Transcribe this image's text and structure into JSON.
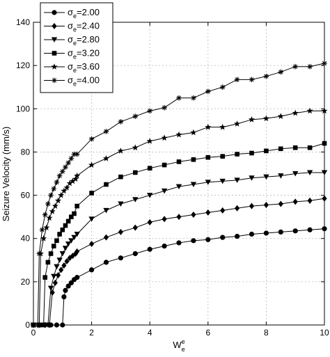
{
  "chart_data": {
    "type": "line",
    "xlabel": "W",
    "xlabel_sup": "e",
    "xlabel_sub": "e",
    "ylabel": "Seizure Velocity (mm/s)",
    "xlim": [
      0,
      10
    ],
    "ylim": [
      0,
      140
    ],
    "xticks": [
      "0",
      "2",
      "4",
      "6",
      "8",
      "10"
    ],
    "yticks": [
      "0",
      "20",
      "40",
      "60",
      "80",
      "100",
      "120",
      "140"
    ],
    "grid": true,
    "legend_position": "top-left",
    "series": [
      {
        "name": "σ",
        "sub": "e",
        "value": "=2.00",
        "marker": "circle",
        "x": [
          0,
          0.2,
          0.4,
          0.6,
          0.8,
          1.0,
          1.05,
          1.1,
          1.2,
          1.3,
          1.4,
          1.5,
          2.0,
          2.5,
          3.0,
          3.5,
          4.0,
          4.5,
          5.0,
          5.5,
          6.0,
          6.5,
          7.0,
          7.5,
          8.0,
          8.5,
          9.0,
          9.5,
          10.0
        ],
        "y": [
          0,
          0,
          0,
          0,
          0,
          0,
          13,
          16,
          18,
          19.5,
          21,
          22,
          25.5,
          29,
          31,
          33,
          35,
          36.5,
          38,
          39,
          39.5,
          40.5,
          41,
          42,
          42.5,
          43,
          43.5,
          44,
          44.5
        ]
      },
      {
        "name": "σ",
        "sub": "e",
        "value": "=2.40",
        "marker": "diamond",
        "x": [
          0,
          0.2,
          0.4,
          0.55,
          0.65,
          0.75,
          0.85,
          0.95,
          1.05,
          1.15,
          1.25,
          1.35,
          1.45,
          1.5,
          2.0,
          2.5,
          3.0,
          3.5,
          4.0,
          4.5,
          5.0,
          5.5,
          6.0,
          6.5,
          7.0,
          7.5,
          8.0,
          8.5,
          9.0,
          9.5,
          10.0
        ],
        "y": [
          0,
          0,
          0,
          0,
          15,
          19.5,
          23,
          25.5,
          27.5,
          29.5,
          31,
          32,
          33,
          34,
          37.5,
          40.5,
          43,
          45,
          47.5,
          49,
          50,
          51,
          52,
          53,
          54,
          55,
          55.5,
          56,
          57,
          57.5,
          58.5
        ]
      },
      {
        "name": "σ",
        "sub": "e",
        "value": "=2.80",
        "marker": "triangle-down",
        "x": [
          0,
          0.2,
          0.4,
          0.5,
          0.6,
          0.7,
          0.8,
          0.9,
          1.0,
          1.1,
          1.2,
          1.3,
          1.4,
          1.5,
          2.0,
          2.5,
          3.0,
          3.5,
          4.0,
          4.5,
          5.0,
          5.5,
          6.0,
          6.5,
          7.0,
          7.5,
          8.0,
          8.5,
          9.0,
          9.5,
          10.0
        ],
        "y": [
          0,
          0,
          0,
          0,
          17,
          22.5,
          27,
          30,
          33,
          35.5,
          37.5,
          39,
          40.5,
          42,
          49,
          53,
          56,
          58,
          60,
          62,
          64,
          65,
          66,
          66.5,
          67,
          68,
          68.5,
          69,
          70,
          70.5,
          70.5
        ]
      },
      {
        "name": "σ",
        "sub": "e",
        "value": "=3.20",
        "marker": "square",
        "x": [
          0,
          0.2,
          0.35,
          0.4,
          0.5,
          0.6,
          0.7,
          0.8,
          0.9,
          1.0,
          1.1,
          1.2,
          1.3,
          1.4,
          1.5,
          2.0,
          2.5,
          3.0,
          3.5,
          4.0,
          4.5,
          5.0,
          5.5,
          6.0,
          6.5,
          7.0,
          7.5,
          8.0,
          8.5,
          9.0,
          9.5,
          10.0
        ],
        "y": [
          0,
          0,
          0,
          22,
          29,
          33,
          36.5,
          39,
          42,
          44,
          46,
          48,
          50,
          51.5,
          55,
          61,
          65,
          68.5,
          70.5,
          72.5,
          74,
          75.5,
          76.5,
          77.5,
          78,
          79,
          79.5,
          80.5,
          81.5,
          82,
          82,
          84
        ]
      },
      {
        "name": "σ",
        "sub": "e",
        "value": "=3.60",
        "marker": "star",
        "x": [
          0,
          0.2,
          0.25,
          0.35,
          0.45,
          0.55,
          0.65,
          0.75,
          0.85,
          0.95,
          1.05,
          1.15,
          1.25,
          1.35,
          1.45,
          1.5,
          2.0,
          2.5,
          3.0,
          3.5,
          4.0,
          4.5,
          5.0,
          5.5,
          6.0,
          6.5,
          7.0,
          7.5,
          8.0,
          8.5,
          9.0,
          9.5,
          10.0
        ],
        "y": [
          0,
          0,
          33,
          40,
          45,
          49.5,
          52.5,
          55,
          57.5,
          60,
          62,
          63.5,
          65.5,
          66.5,
          67.5,
          69,
          74,
          77,
          80.5,
          82,
          85,
          86.5,
          88,
          89,
          91.5,
          91.5,
          93,
          95,
          95.5,
          96.5,
          98,
          99,
          99
        ]
      },
      {
        "name": "σ",
        "sub": "e",
        "value": "=4.00",
        "marker": "asterisk",
        "x": [
          0,
          0.15,
          0.2,
          0.3,
          0.4,
          0.5,
          0.6,
          0.7,
          0.8,
          0.9,
          1.0,
          1.1,
          1.2,
          1.3,
          1.4,
          1.5,
          2.0,
          2.5,
          3.0,
          3.5,
          4.0,
          4.5,
          5.0,
          5.5,
          6.0,
          6.5,
          7.0,
          7.5,
          8.0,
          8.5,
          9.0,
          9.5,
          10.0
        ],
        "y": [
          0,
          0,
          33,
          44,
          51,
          56,
          60,
          63,
          66,
          69,
          71,
          73,
          75,
          77,
          79,
          79,
          86,
          89.5,
          94,
          96.5,
          99,
          100.5,
          105,
          105,
          108,
          110,
          113.5,
          113.5,
          115,
          117,
          119.5,
          119.5,
          121
        ]
      }
    ]
  }
}
